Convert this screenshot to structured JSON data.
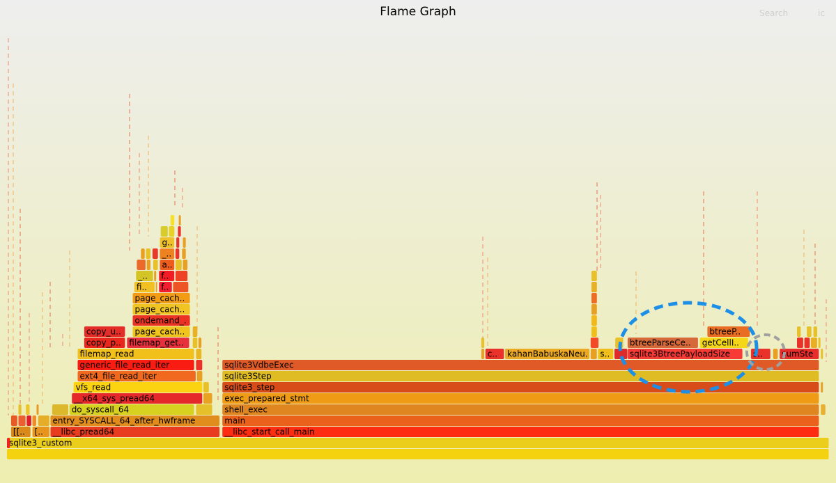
{
  "header": {
    "title": "Flame Graph",
    "search_label": "Search",
    "ic_label": "ic"
  },
  "chart_data": {
    "type": "flamegraph",
    "frames": [
      {
        "label": "",
        "depth": 0,
        "start": 0,
        "end": 100,
        "color": "#f5d20f"
      },
      {
        "label": "sqlite3_custom",
        "depth": 1,
        "start": 0,
        "end": 100,
        "color": "#eace1b"
      },
      {
        "label": "",
        "depth": 1,
        "start": 0,
        "end": 0.4,
        "color": "#ee2222"
      },
      {
        "label": "[[..",
        "depth": 2,
        "start": 0.5,
        "end": 2.9,
        "color": "#d98a1a"
      },
      {
        "label": "[..",
        "depth": 2,
        "start": 3.1,
        "end": 5.2,
        "color": "#e89520"
      },
      {
        "label": "__libc_pread64",
        "depth": 2,
        "start": 5.3,
        "end": 25.9,
        "color": "#e83b1f"
      },
      {
        "label": "__libc_start_call_main",
        "depth": 2,
        "start": 26.2,
        "end": 98.8,
        "color": "#fe2d12"
      },
      {
        "label": "",
        "depth": 3,
        "start": 0.5,
        "end": 1.3,
        "color": "#e85a25"
      },
      {
        "label": "",
        "depth": 3,
        "start": 1.4,
        "end": 2.3,
        "color": "#ec5f30"
      },
      {
        "label": "",
        "depth": 3,
        "start": 2.4,
        "end": 3.0,
        "color": "#e01e2a"
      },
      {
        "label": "",
        "depth": 3,
        "start": 3.1,
        "end": 3.6,
        "color": "#ef8b2a"
      },
      {
        "label": "",
        "depth": 3,
        "start": 3.8,
        "end": 5.2,
        "color": "#e6ad29"
      },
      {
        "label": "entry_SYSCALL_64_after_hwframe",
        "depth": 3,
        "start": 5.3,
        "end": 25.9,
        "color": "#e08d1e"
      },
      {
        "label": "main",
        "depth": 3,
        "start": 26.2,
        "end": 98.8,
        "color": "#e9611b"
      },
      {
        "label": "",
        "depth": 4,
        "start": 1.4,
        "end": 1.8,
        "color": "#e6c02c"
      },
      {
        "label": "",
        "depth": 4,
        "start": 2.3,
        "end": 2.8,
        "color": "#eec52a"
      },
      {
        "label": "",
        "depth": 4,
        "start": 3.6,
        "end": 3.9,
        "color": "#e89a24"
      },
      {
        "label": "",
        "depth": 4,
        "start": 5.5,
        "end": 7.5,
        "color": "#dcb92c"
      },
      {
        "label": "do_syscall_64",
        "depth": 4,
        "start": 7.6,
        "end": 22.8,
        "color": "#d7d11f"
      },
      {
        "label": "",
        "depth": 4,
        "start": 23.0,
        "end": 25.0,
        "color": "#e6c02a"
      },
      {
        "label": "shell_exec",
        "depth": 4,
        "start": 26.2,
        "end": 98.8,
        "color": "#e08620"
      },
      {
        "label": "",
        "depth": 4,
        "start": 99.0,
        "end": 99.6,
        "color": "#e8b030"
      },
      {
        "label": "__x64_sys_pread64",
        "depth": 5,
        "start": 7.9,
        "end": 23.8,
        "color": "#e5282a"
      },
      {
        "label": "",
        "depth": 5,
        "start": 23.9,
        "end": 25.0,
        "color": "#e8a324"
      },
      {
        "label": "exec_prepared_stmt",
        "depth": 5,
        "start": 26.2,
        "end": 98.8,
        "color": "#ef9b15"
      },
      {
        "label": "vfs_read",
        "depth": 6,
        "start": 8.1,
        "end": 23.8,
        "color": "#fbd311"
      },
      {
        "label": "",
        "depth": 6,
        "start": 23.9,
        "end": 24.6,
        "color": "#e8c02a"
      },
      {
        "label": "sqlite3_step",
        "depth": 6,
        "start": 26.2,
        "end": 98.8,
        "color": "#d84c1a"
      },
      {
        "label": "",
        "depth": 6,
        "start": 99.0,
        "end": 99.3,
        "color": "#e6a024"
      },
      {
        "label": "ext4_file_read_iter",
        "depth": 7,
        "start": 8.6,
        "end": 23.0,
        "color": "#f0691f"
      },
      {
        "label": "",
        "depth": 7,
        "start": 23.1,
        "end": 23.8,
        "color": "#e8a024"
      },
      {
        "label": "sqlite3Step",
        "depth": 7,
        "start": 26.2,
        "end": 98.8,
        "color": "#dfbb24"
      },
      {
        "label": "generic_file_read_iter",
        "depth": 8,
        "start": 8.6,
        "end": 22.8,
        "color": "#f81c12"
      },
      {
        "label": "",
        "depth": 8,
        "start": 23.0,
        "end": 23.8,
        "color": "#e8322a"
      },
      {
        "label": "sqlite3VdbeExec",
        "depth": 8,
        "start": 26.2,
        "end": 98.8,
        "color": "#df5a26"
      },
      {
        "label": "filemap_read",
        "depth": 9,
        "start": 8.6,
        "end": 22.8,
        "color": "#f2c01a"
      },
      {
        "label": "",
        "depth": 9,
        "start": 23.0,
        "end": 23.7,
        "color": "#e8b824"
      },
      {
        "label": "",
        "depth": 9,
        "start": 57.7,
        "end": 58.1,
        "color": "#e8a024"
      },
      {
        "label": "c..",
        "depth": 9,
        "start": 58.2,
        "end": 60.5,
        "color": "#e8322a"
      },
      {
        "label": "kahanBabuskaNeu..",
        "depth": 9,
        "start": 60.6,
        "end": 70.9,
        "color": "#eba924"
      },
      {
        "label": "",
        "depth": 9,
        "start": 71.0,
        "end": 71.8,
        "color": "#e8a024"
      },
      {
        "label": "s..",
        "depth": 9,
        "start": 71.9,
        "end": 73.8,
        "color": "#f0bf1b"
      },
      {
        "label": "",
        "depth": 9,
        "start": 73.9,
        "end": 75.5,
        "color": "#dd2a2a"
      },
      {
        "label": "sqlite3BtreePayloadSize",
        "depth": 9,
        "start": 75.5,
        "end": 89.5,
        "color": "#f73a36"
      },
      {
        "label": "s..",
        "depth": 9,
        "start": 90.5,
        "end": 92.9,
        "color": "#e8322a"
      },
      {
        "label": "",
        "depth": 9,
        "start": 93.2,
        "end": 93.8,
        "color": "#e8a024"
      },
      {
        "label": "sumStep",
        "depth": 9,
        "start": 94.0,
        "end": 98.8,
        "color": "#e92d2d"
      },
      {
        "label": "",
        "depth": 9,
        "start": 99.0,
        "end": 99.3,
        "color": "#e8c02a"
      },
      {
        "label": "copy_p..",
        "depth": 10,
        "start": 9.4,
        "end": 14.4,
        "color": "#e9271d"
      },
      {
        "label": "filemap_get..",
        "depth": 10,
        "start": 14.6,
        "end": 22.2,
        "color": "#e6303c"
      },
      {
        "label": "",
        "depth": 10,
        "start": 22.6,
        "end": 23.2,
        "color": "#e8c02a"
      },
      {
        "label": "",
        "depth": 10,
        "start": 23.3,
        "end": 23.7,
        "color": "#e8a024"
      },
      {
        "label": "",
        "depth": 10,
        "start": 57.7,
        "end": 58.1,
        "color": "#e8c02a"
      },
      {
        "label": "",
        "depth": 10,
        "start": 71.0,
        "end": 72.0,
        "color": "#f24a28"
      },
      {
        "label": "",
        "depth": 10,
        "start": 74.0,
        "end": 75.0,
        "color": "#e8c02a"
      },
      {
        "label": "btreeParseCe..",
        "depth": 10,
        "start": 75.5,
        "end": 84.1,
        "color": "#d6693a"
      },
      {
        "label": "getCellI..",
        "depth": 10,
        "start": 84.3,
        "end": 90.2,
        "color": "#f5d71a"
      },
      {
        "label": "",
        "depth": 10,
        "start": 96.1,
        "end": 96.9,
        "color": "#e8322a"
      },
      {
        "label": "",
        "depth": 10,
        "start": 97.0,
        "end": 97.7,
        "color": "#e8322a"
      },
      {
        "label": "",
        "depth": 10,
        "start": 97.8,
        "end": 98.6,
        "color": "#e8b024"
      },
      {
        "label": "",
        "depth": 10,
        "start": 98.7,
        "end": 99.0,
        "color": "#e8c02a"
      },
      {
        "label": "copy_u..",
        "depth": 11,
        "start": 9.4,
        "end": 14.4,
        "color": "#e42c28"
      },
      {
        "label": "page_cach..",
        "depth": 11,
        "start": 15.3,
        "end": 22.3,
        "color": "#efc41c"
      },
      {
        "label": "",
        "depth": 11,
        "start": 22.6,
        "end": 23.2,
        "color": "#e8b024"
      },
      {
        "label": "",
        "depth": 11,
        "start": 71.1,
        "end": 71.8,
        "color": "#f0c01a"
      },
      {
        "label": "btreeP..",
        "depth": 11,
        "start": 85.2,
        "end": 90.4,
        "color": "#e86c22"
      },
      {
        "label": "",
        "depth": 11,
        "start": 96.1,
        "end": 96.6,
        "color": "#e8c02a"
      },
      {
        "label": "",
        "depth": 11,
        "start": 97.3,
        "end": 97.9,
        "color": "#e8c02a"
      },
      {
        "label": "",
        "depth": 11,
        "start": 98.1,
        "end": 98.6,
        "color": "#e8c02a"
      },
      {
        "label": "ondemand_..",
        "depth": 12,
        "start": 15.3,
        "end": 22.3,
        "color": "#eb3324"
      },
      {
        "label": "",
        "depth": 12,
        "start": 71.1,
        "end": 71.8,
        "color": "#f2b81a"
      },
      {
        "label": "page_cach..",
        "depth": 13,
        "start": 15.3,
        "end": 22.3,
        "color": "#f0c423"
      },
      {
        "label": "",
        "depth": 13,
        "start": 71.1,
        "end": 71.8,
        "color": "#e8a024"
      },
      {
        "label": "page_cach..",
        "depth": 14,
        "start": 15.3,
        "end": 22.3,
        "color": "#f29c16"
      },
      {
        "label": "",
        "depth": 14,
        "start": 71.1,
        "end": 71.8,
        "color": "#ef6c24"
      },
      {
        "label": "fi..",
        "depth": 15,
        "start": 15.5,
        "end": 18.0,
        "color": "#f2c023"
      },
      {
        "label": "",
        "depth": 15,
        "start": 18.1,
        "end": 18.3,
        "color": "#e8a024"
      },
      {
        "label": "f..",
        "depth": 15,
        "start": 18.5,
        "end": 20.1,
        "color": "#f01e2e"
      },
      {
        "label": "",
        "depth": 15,
        "start": 20.2,
        "end": 22.1,
        "color": "#ee5524"
      },
      {
        "label": "",
        "depth": 15,
        "start": 71.1,
        "end": 71.8,
        "color": "#e8b024"
      },
      {
        "label": "_..",
        "depth": 16,
        "start": 15.7,
        "end": 17.8,
        "color": "#d4c426"
      },
      {
        "label": "",
        "depth": 16,
        "start": 17.9,
        "end": 18.2,
        "color": "#e8a024"
      },
      {
        "label": "f..",
        "depth": 16,
        "start": 18.5,
        "end": 20.4,
        "color": "#f21d24"
      },
      {
        "label": "",
        "depth": 16,
        "start": 20.5,
        "end": 22.0,
        "color": "#ee4224"
      },
      {
        "label": "",
        "depth": 16,
        "start": 71.1,
        "end": 71.8,
        "color": "#e8c02a"
      },
      {
        "label": "",
        "depth": 17,
        "start": 15.8,
        "end": 16.9,
        "color": "#e96a2a"
      },
      {
        "label": "",
        "depth": 17,
        "start": 17.0,
        "end": 17.5,
        "color": "#e8a024"
      },
      {
        "label": "",
        "depth": 17,
        "start": 17.8,
        "end": 18.4,
        "color": "#e8c02a"
      },
      {
        "label": "a..",
        "depth": 17,
        "start": 18.6,
        "end": 20.4,
        "color": "#ed5d1e"
      },
      {
        "label": "",
        "depth": 17,
        "start": 20.5,
        "end": 21.3,
        "color": "#e8c02a"
      },
      {
        "label": "",
        "depth": 17,
        "start": 21.4,
        "end": 22.0,
        "color": "#e8a024"
      },
      {
        "label": "",
        "depth": 18,
        "start": 16.3,
        "end": 16.8,
        "color": "#e8a024"
      },
      {
        "label": "",
        "depth": 18,
        "start": 16.9,
        "end": 17.5,
        "color": "#e8c02a"
      },
      {
        "label": "",
        "depth": 18,
        "start": 17.7,
        "end": 18.4,
        "color": "#e83a2a"
      },
      {
        "label": "_..",
        "depth": 18,
        "start": 18.6,
        "end": 20.4,
        "color": "#ef8220"
      },
      {
        "label": "",
        "depth": 18,
        "start": 20.5,
        "end": 21.0,
        "color": "#e8322a"
      },
      {
        "label": "",
        "depth": 18,
        "start": 21.3,
        "end": 21.8,
        "color": "#e8a024"
      },
      {
        "label": "g..",
        "depth": 19,
        "start": 18.6,
        "end": 20.4,
        "color": "#eec12a"
      },
      {
        "label": "",
        "depth": 19,
        "start": 20.6,
        "end": 21.0,
        "color": "#e8322a"
      },
      {
        "label": "",
        "depth": 19,
        "start": 21.4,
        "end": 21.8,
        "color": "#e8a024"
      },
      {
        "label": "",
        "depth": 20,
        "start": 18.7,
        "end": 19.6,
        "color": "#d7cc2c"
      },
      {
        "label": "",
        "depth": 20,
        "start": 19.7,
        "end": 20.4,
        "color": "#e8d024"
      },
      {
        "label": "",
        "depth": 20,
        "start": 20.8,
        "end": 21.2,
        "color": "#e8322a"
      },
      {
        "label": "",
        "depth": 21,
        "start": 19.9,
        "end": 20.4,
        "color": "#f5e02a"
      },
      {
        "label": "",
        "depth": 21,
        "start": 20.9,
        "end": 21.2,
        "color": "#e8a024"
      }
    ]
  }
}
